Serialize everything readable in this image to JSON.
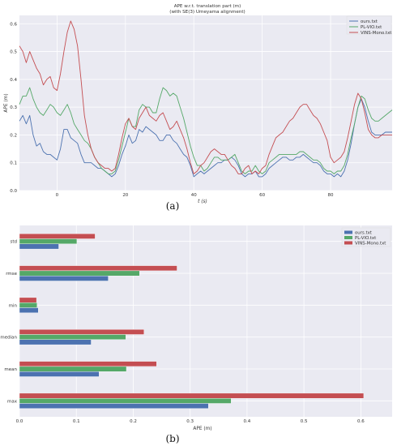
{
  "chart_data": [
    {
      "type": "line",
      "title": "APE w.r.t. translation part (m)",
      "subtitle": "(with SE(3) Umeyama alignment)",
      "xlabel": "t (s)",
      "ylabel": "APE (m)",
      "xlim": [
        -11,
        98
      ],
      "ylim": [
        0,
        0.63
      ],
      "xticks": [
        0,
        20,
        40,
        60,
        80
      ],
      "yticks": [
        0.0,
        0.1,
        0.2,
        0.3,
        0.4,
        0.5,
        0.6
      ],
      "grid": true,
      "legend": "top-right",
      "caption": "(a)",
      "x": [
        -11,
        -10,
        -9,
        -8,
        -7,
        -6,
        -5,
        -4,
        -3,
        -2,
        -1,
        0,
        1,
        2,
        3,
        4,
        5,
        6,
        7,
        8,
        9,
        10,
        11,
        12,
        13,
        14,
        15,
        16,
        17,
        18,
        19,
        20,
        21,
        22,
        23,
        24,
        25,
        26,
        27,
        28,
        29,
        30,
        31,
        32,
        33,
        34,
        35,
        36,
        37,
        38,
        39,
        40,
        41,
        42,
        43,
        44,
        45,
        46,
        47,
        48,
        49,
        50,
        51,
        52,
        53,
        54,
        55,
        56,
        57,
        58,
        59,
        60,
        61,
        62,
        63,
        64,
        65,
        66,
        67,
        68,
        69,
        70,
        71,
        72,
        73,
        74,
        75,
        76,
        77,
        78,
        79,
        80,
        81,
        82,
        83,
        84,
        85,
        86,
        87,
        88,
        89,
        90,
        91,
        92,
        93,
        94,
        95,
        96,
        97,
        98
      ],
      "series": [
        {
          "name": "ours.txt",
          "color": "#4c72b0",
          "values": [
            0.25,
            0.27,
            0.24,
            0.27,
            0.2,
            0.16,
            0.17,
            0.14,
            0.13,
            0.13,
            0.12,
            0.11,
            0.15,
            0.22,
            0.22,
            0.19,
            0.18,
            0.17,
            0.13,
            0.1,
            0.1,
            0.1,
            0.09,
            0.08,
            0.08,
            0.07,
            0.06,
            0.05,
            0.06,
            0.09,
            0.13,
            0.16,
            0.2,
            0.17,
            0.18,
            0.22,
            0.21,
            0.23,
            0.22,
            0.21,
            0.2,
            0.18,
            0.18,
            0.2,
            0.2,
            0.18,
            0.17,
            0.15,
            0.13,
            0.12,
            0.09,
            0.05,
            0.06,
            0.07,
            0.06,
            0.07,
            0.08,
            0.09,
            0.1,
            0.1,
            0.11,
            0.11,
            0.12,
            0.11,
            0.09,
            0.06,
            0.05,
            0.06,
            0.06,
            0.07,
            0.05,
            0.05,
            0.06,
            0.08,
            0.09,
            0.1,
            0.11,
            0.12,
            0.12,
            0.11,
            0.11,
            0.12,
            0.12,
            0.13,
            0.12,
            0.11,
            0.1,
            0.1,
            0.09,
            0.07,
            0.06,
            0.06,
            0.05,
            0.06,
            0.05,
            0.07,
            0.11,
            0.17,
            0.24,
            0.3,
            0.33,
            0.3,
            0.25,
            0.21,
            0.2,
            0.2,
            0.2,
            0.21,
            0.21,
            0.21
          ]
        },
        {
          "name": "PL-VIO.txt",
          "color": "#55a868",
          "values": [
            0.31,
            0.34,
            0.34,
            0.37,
            0.33,
            0.3,
            0.28,
            0.27,
            0.29,
            0.31,
            0.3,
            0.28,
            0.27,
            0.29,
            0.31,
            0.28,
            0.24,
            0.22,
            0.2,
            0.18,
            0.17,
            0.15,
            0.12,
            0.1,
            0.08,
            0.07,
            0.06,
            0.06,
            0.07,
            0.11,
            0.16,
            0.21,
            0.26,
            0.23,
            0.23,
            0.29,
            0.31,
            0.3,
            0.3,
            0.28,
            0.28,
            0.33,
            0.37,
            0.36,
            0.34,
            0.35,
            0.34,
            0.3,
            0.26,
            0.21,
            0.16,
            0.12,
            0.09,
            0.09,
            0.07,
            0.08,
            0.1,
            0.12,
            0.12,
            0.11,
            0.11,
            0.11,
            0.12,
            0.13,
            0.1,
            0.07,
            0.06,
            0.07,
            0.07,
            0.09,
            0.07,
            0.06,
            0.07,
            0.1,
            0.11,
            0.12,
            0.13,
            0.13,
            0.13,
            0.13,
            0.13,
            0.13,
            0.14,
            0.14,
            0.13,
            0.12,
            0.11,
            0.11,
            0.1,
            0.08,
            0.07,
            0.07,
            0.06,
            0.07,
            0.07,
            0.09,
            0.13,
            0.19,
            0.24,
            0.3,
            0.34,
            0.33,
            0.29,
            0.26,
            0.25,
            0.25,
            0.26,
            0.27,
            0.28,
            0.29
          ]
        },
        {
          "name": "VINS-Mono.txt",
          "color": "#c44e52",
          "values": [
            0.52,
            0.5,
            0.46,
            0.5,
            0.47,
            0.44,
            0.42,
            0.38,
            0.4,
            0.41,
            0.37,
            0.36,
            0.42,
            0.5,
            0.57,
            0.61,
            0.58,
            0.52,
            0.4,
            0.27,
            0.2,
            0.15,
            0.12,
            0.1,
            0.09,
            0.08,
            0.08,
            0.07,
            0.08,
            0.13,
            0.19,
            0.24,
            0.26,
            0.23,
            0.22,
            0.26,
            0.28,
            0.3,
            0.27,
            0.26,
            0.25,
            0.27,
            0.28,
            0.25,
            0.22,
            0.23,
            0.25,
            0.22,
            0.19,
            0.15,
            0.1,
            0.06,
            0.07,
            0.09,
            0.1,
            0.12,
            0.14,
            0.15,
            0.14,
            0.13,
            0.13,
            0.11,
            0.09,
            0.08,
            0.06,
            0.06,
            0.08,
            0.09,
            0.06,
            0.07,
            0.06,
            0.08,
            0.09,
            0.13,
            0.16,
            0.19,
            0.2,
            0.21,
            0.23,
            0.25,
            0.26,
            0.28,
            0.3,
            0.31,
            0.31,
            0.29,
            0.27,
            0.26,
            0.24,
            0.21,
            0.18,
            0.12,
            0.1,
            0.11,
            0.12,
            0.14,
            0.19,
            0.25,
            0.31,
            0.35,
            0.33,
            0.28,
            0.22,
            0.2,
            0.19,
            0.19,
            0.2,
            0.2,
            0.2,
            0.2
          ]
        }
      ]
    },
    {
      "type": "bar",
      "orientation": "horizontal",
      "xlabel": "APE (m)",
      "xlim": [
        0,
        0.655
      ],
      "xticks": [
        0.0,
        0.1,
        0.2,
        0.3,
        0.4,
        0.5,
        0.6
      ],
      "grid": true,
      "legend": "top-right",
      "caption": "(b)",
      "categories": [
        "std",
        "rmse",
        "min",
        "median",
        "mean",
        "max"
      ],
      "series": [
        {
          "name": "ours.txt",
          "color": "#4c72b0",
          "values": [
            0.069,
            0.156,
            0.033,
            0.126,
            0.14,
            0.332
          ]
        },
        {
          "name": "PL-VIO.txt",
          "color": "#55a868",
          "values": [
            0.101,
            0.211,
            0.031,
            0.187,
            0.188,
            0.372
          ]
        },
        {
          "name": "VINS-Mono.txt",
          "color": "#c44e52",
          "values": [
            0.133,
            0.277,
            0.03,
            0.219,
            0.241,
            0.605
          ]
        }
      ]
    }
  ]
}
